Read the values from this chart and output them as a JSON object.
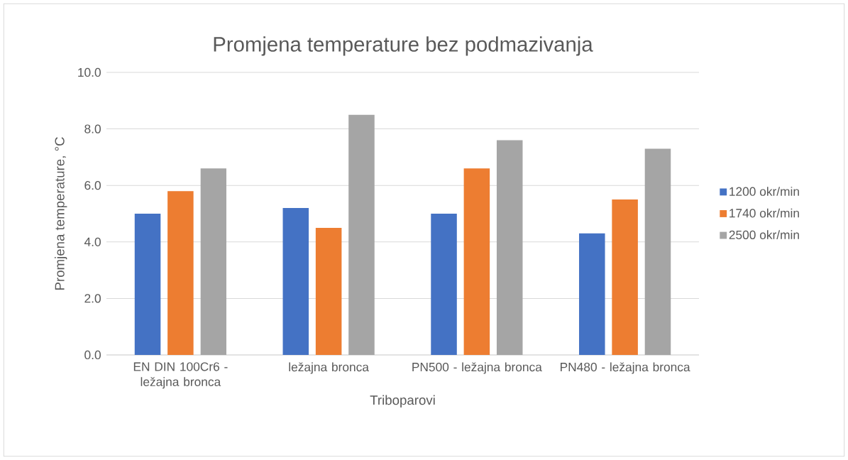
{
  "chart_data": {
    "type": "bar",
    "title": "Promjena temperature bez podmazivanja",
    "xlabel": "Triboparovi",
    "ylabel": "Promjena temperature, °C",
    "categories": [
      "EN DIN 100Cr6 - ležajna bronca",
      "ležajna bronca",
      "PN500 - ležajna bronca",
      "PN480 - ležajna bronca"
    ],
    "series": [
      {
        "name": "1200 okr/min",
        "color": "#4472c4",
        "values": [
          5.0,
          5.2,
          5.0,
          4.3
        ]
      },
      {
        "name": "1740 okr/min",
        "color": "#ed7d31",
        "values": [
          5.8,
          4.5,
          6.6,
          5.5
        ]
      },
      {
        "name": "2500 okr/min",
        "color": "#a5a5a5",
        "values": [
          6.6,
          8.5,
          7.6,
          7.3
        ]
      }
    ],
    "ylim": [
      0,
      10
    ],
    "yticks": [
      {
        "value": 0,
        "label": "0.0"
      },
      {
        "value": 2,
        "label": "2.0"
      },
      {
        "value": 4,
        "label": "4.0"
      },
      {
        "value": 6,
        "label": "6.0"
      },
      {
        "value": 8,
        "label": "8.0"
      },
      {
        "value": 10,
        "label": "10.0"
      }
    ],
    "grid": "y",
    "legend": "right"
  }
}
